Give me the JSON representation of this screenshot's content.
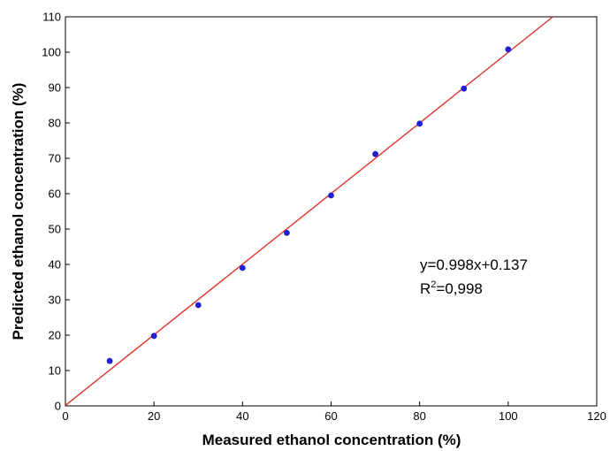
{
  "chart_data": {
    "type": "scatter",
    "title": "",
    "xlabel": "Measured ethanol concentration (%)",
    "ylabel": "Predicted ethanol concentration (%)",
    "xlim": [
      0,
      120
    ],
    "ylim": [
      0,
      110
    ],
    "xticks": [
      0,
      20,
      40,
      60,
      80,
      100,
      120
    ],
    "yticks": [
      0,
      10,
      20,
      30,
      40,
      50,
      60,
      70,
      80,
      90,
      100,
      110
    ],
    "grid": false,
    "series": [
      {
        "type": "scatter",
        "color": "#1f1fd6",
        "points": [
          {
            "x": 10,
            "y": 12.7
          },
          {
            "x": 20,
            "y": 19.8
          },
          {
            "x": 30,
            "y": 28.5
          },
          {
            "x": 40,
            "y": 39.0
          },
          {
            "x": 50,
            "y": 48.9
          },
          {
            "x": 60,
            "y": 59.5
          },
          {
            "x": 70,
            "y": 71.2
          },
          {
            "x": 80,
            "y": 79.8
          },
          {
            "x": 90,
            "y": 89.7
          },
          {
            "x": 100,
            "y": 100.8
          }
        ]
      },
      {
        "type": "line",
        "color": "#e0312b",
        "slope": 0.998,
        "intercept": 0.137
      }
    ],
    "annotation": {
      "equation": "y=0.998x+0.137",
      "r2_prefix": "R",
      "r2_sup": "2",
      "r2_value": "=0,998"
    }
  }
}
